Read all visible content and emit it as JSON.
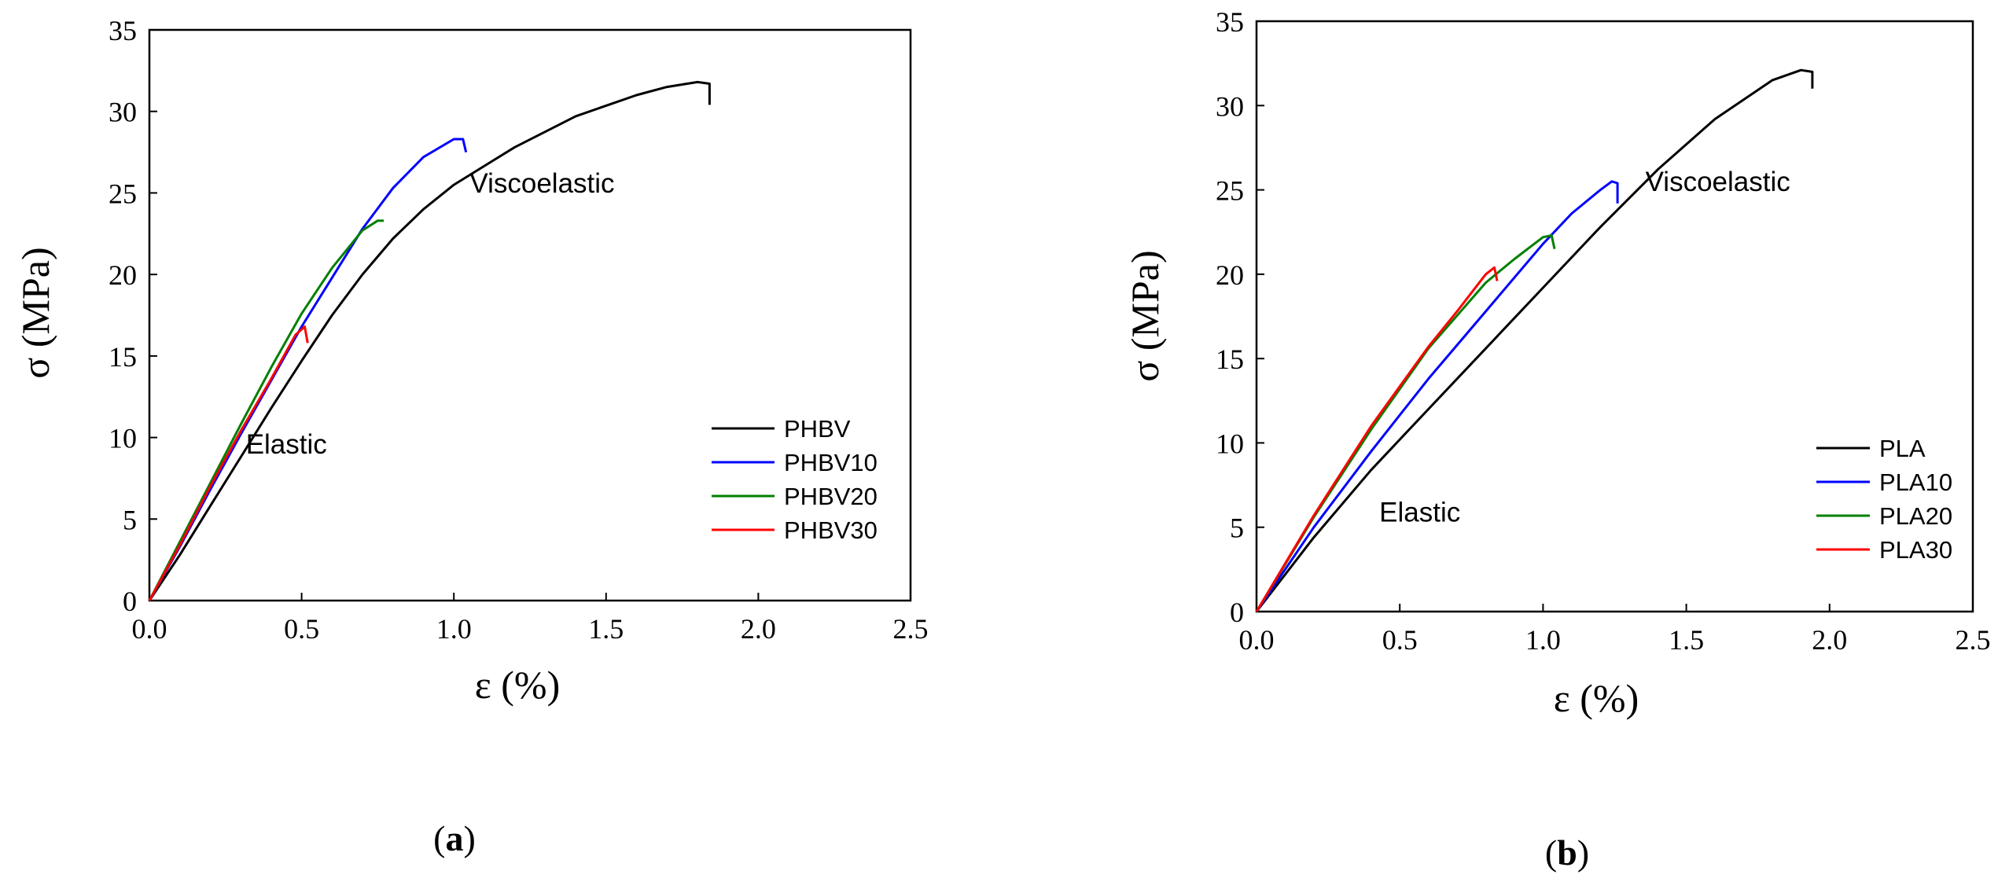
{
  "chart_data": [
    {
      "id": "a",
      "type": "line",
      "panel_label": "a",
      "xlabel": "ε (%)",
      "ylabel": "σ (MPa)",
      "xlim": [
        0,
        2.5
      ],
      "ylim": [
        0,
        35
      ],
      "xticks": [
        0,
        0.5,
        1.0,
        1.5,
        2.0,
        2.5
      ],
      "xtick_labels": [
        "0.0",
        "0.5",
        "1.0",
        "1.5",
        "2.0",
        "2.5"
      ],
      "yticks": [
        0,
        5,
        10,
        15,
        20,
        25,
        30,
        35
      ],
      "ytick_labels": [
        "0",
        "5",
        "10",
        "15",
        "20",
        "25",
        "30",
        "35"
      ],
      "legend_position": "lower-right",
      "annotations": [
        {
          "text": "Viscoelastic",
          "x": 1.29,
          "y": 25.6
        },
        {
          "text": "Elastic",
          "x": 0.45,
          "y": 9.6
        }
      ],
      "series": [
        {
          "name": "PHBV",
          "color": "#000000",
          "x": [
            0,
            0.1,
            0.2,
            0.3,
            0.4,
            0.5,
            0.6,
            0.7,
            0.8,
            0.9,
            1.0,
            1.2,
            1.4,
            1.6,
            1.7,
            1.8,
            1.84,
            1.84
          ],
          "y": [
            0,
            2.8,
            5.8,
            8.8,
            11.8,
            14.7,
            17.5,
            20.0,
            22.2,
            24.0,
            25.5,
            27.8,
            29.7,
            31.0,
            31.5,
            31.8,
            31.7,
            30.4
          ]
        },
        {
          "name": "PHBV10",
          "color": "#0000ff",
          "x": [
            0,
            0.1,
            0.2,
            0.3,
            0.4,
            0.5,
            0.6,
            0.7,
            0.8,
            0.9,
            1.0,
            1.03,
            1.04
          ],
          "y": [
            0,
            3.3,
            6.8,
            10.2,
            13.5,
            16.8,
            19.8,
            22.8,
            25.3,
            27.2,
            28.3,
            28.3,
            27.5
          ]
        },
        {
          "name": "PHBV20",
          "color": "#008000",
          "x": [
            0,
            0.1,
            0.2,
            0.3,
            0.4,
            0.5,
            0.6,
            0.7,
            0.75,
            0.77
          ],
          "y": [
            0,
            3.6,
            7.2,
            10.8,
            14.3,
            17.6,
            20.4,
            22.7,
            23.3,
            23.3
          ]
        },
        {
          "name": "PHBV30",
          "color": "#ff0000",
          "x": [
            0,
            0.1,
            0.2,
            0.3,
            0.4,
            0.48,
            0.51,
            0.52
          ],
          "y": [
            0,
            3.4,
            7.0,
            10.4,
            13.6,
            16.3,
            16.8,
            15.8
          ]
        }
      ]
    },
    {
      "id": "b",
      "type": "line",
      "panel_label": "b",
      "xlabel": "ε (%)",
      "ylabel": "σ (MPa)",
      "xlim": [
        0,
        2.5
      ],
      "ylim": [
        0,
        35
      ],
      "xticks": [
        0,
        0.5,
        1.0,
        1.5,
        2.0,
        2.5
      ],
      "xtick_labels": [
        "0.0",
        "0.5",
        "1.0",
        "1.5",
        "2.0",
        "2.5"
      ],
      "yticks": [
        0,
        5,
        10,
        15,
        20,
        25,
        30,
        35
      ],
      "ytick_labels": [
        "0",
        "5",
        "10",
        "15",
        "20",
        "25",
        "30",
        "35"
      ],
      "legend_position": "lower-right",
      "annotations": [
        {
          "text": "Viscoelastic",
          "x": 1.61,
          "y": 25.5
        },
        {
          "text": "Elastic",
          "x": 0.57,
          "y": 5.9
        }
      ],
      "series": [
        {
          "name": "PLA",
          "color": "#000000",
          "x": [
            0,
            0.2,
            0.4,
            0.6,
            0.8,
            1.0,
            1.2,
            1.4,
            1.6,
            1.8,
            1.9,
            1.94,
            1.94
          ],
          "y": [
            0,
            4.4,
            8.4,
            12.0,
            15.6,
            19.2,
            22.8,
            26.2,
            29.2,
            31.5,
            32.1,
            32.0,
            31.0
          ]
        },
        {
          "name": "PLA10",
          "color": "#0000ff",
          "x": [
            0,
            0.2,
            0.4,
            0.6,
            0.8,
            1.0,
            1.1,
            1.2,
            1.24,
            1.26,
            1.26
          ],
          "y": [
            0,
            5.0,
            9.5,
            13.8,
            17.8,
            21.8,
            23.6,
            25.0,
            25.5,
            25.4,
            24.2
          ]
        },
        {
          "name": "PLA20",
          "color": "#008000",
          "x": [
            0,
            0.2,
            0.4,
            0.6,
            0.8,
            0.9,
            1.0,
            1.03,
            1.04
          ],
          "y": [
            0,
            5.6,
            10.8,
            15.6,
            19.5,
            20.9,
            22.2,
            22.3,
            21.5
          ]
        },
        {
          "name": "PLA30",
          "color": "#ff0000",
          "x": [
            0,
            0.2,
            0.4,
            0.6,
            0.7,
            0.8,
            0.83,
            0.84
          ],
          "y": [
            0,
            5.7,
            11.0,
            15.7,
            17.8,
            20.0,
            20.4,
            19.6
          ]
        }
      ]
    }
  ]
}
